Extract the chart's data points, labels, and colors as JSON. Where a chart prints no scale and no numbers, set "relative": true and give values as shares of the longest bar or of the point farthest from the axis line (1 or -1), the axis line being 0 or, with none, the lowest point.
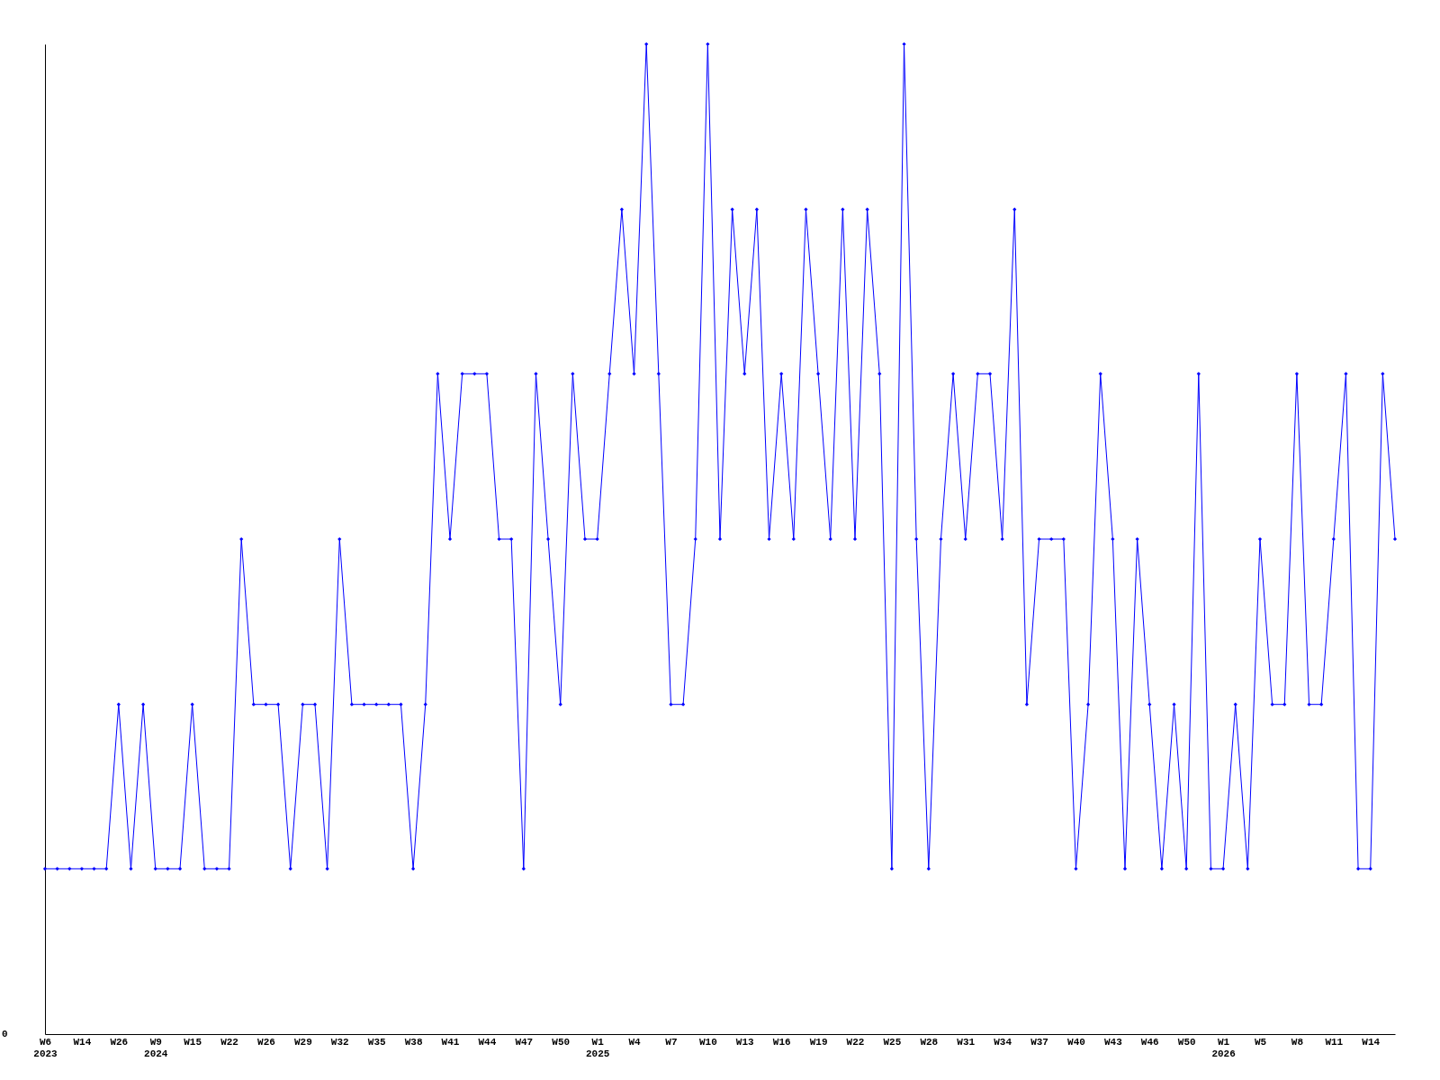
{
  "chart_data": {
    "type": "line",
    "relative": true,
    "color": "#0000ff",
    "marker": "diamond",
    "line_style": "solid",
    "grid": false,
    "annotations": [
      "0"
    ],
    "categories": [
      "W6\n2023",
      null,
      null,
      "W14",
      null,
      null,
      "W26",
      null,
      null,
      "W9\n2024",
      null,
      null,
      "W15",
      null,
      null,
      "W22",
      null,
      null,
      "W26",
      null,
      null,
      "W29",
      null,
      null,
      "W32",
      null,
      null,
      "W35",
      null,
      null,
      "W38",
      null,
      null,
      "W41",
      null,
      null,
      "W44",
      null,
      null,
      "W47",
      null,
      null,
      "W50",
      null,
      null,
      "W1\n2025",
      null,
      null,
      "W4",
      null,
      null,
      "W7",
      null,
      null,
      "W10",
      null,
      null,
      "W13",
      null,
      null,
      "W16",
      null,
      null,
      "W19",
      null,
      null,
      "W22",
      null,
      null,
      "W25",
      null,
      null,
      "W28",
      null,
      null,
      "W31",
      null,
      null,
      "W34",
      null,
      null,
      "W37",
      null,
      null,
      "W40",
      null,
      null,
      "W43",
      null,
      null,
      "W46",
      null,
      null,
      "W50",
      null,
      null,
      "W1\n2026",
      null,
      null,
      "W5",
      null,
      null,
      "W8",
      null,
      null,
      "W11",
      null,
      null,
      "W14",
      null,
      null
    ],
    "values": [
      0.167,
      0.167,
      0.167,
      0.167,
      0.167,
      0.167,
      0.333,
      0.167,
      0.333,
      0.167,
      0.167,
      0.167,
      0.333,
      0.167,
      0.167,
      0.167,
      0.5,
      0.333,
      0.333,
      0.333,
      0.167,
      0.333,
      0.333,
      0.167,
      0.5,
      0.333,
      0.333,
      0.333,
      0.333,
      0.333,
      0.167,
      0.333,
      0.667,
      0.5,
      0.667,
      0.667,
      0.667,
      0.5,
      0.5,
      0.167,
      0.667,
      0.5,
      0.333,
      0.667,
      0.5,
      0.5,
      0.667,
      0.833,
      0.667,
      1,
      0.667,
      0.333,
      0.333,
      0.5,
      1,
      0.5,
      0.833,
      0.667,
      0.833,
      0.5,
      0.667,
      0.5,
      0.833,
      0.667,
      0.5,
      0.833,
      0.5,
      0.833,
      0.667,
      0.167,
      1,
      0.5,
      0.167,
      0.5,
      0.667,
      0.5,
      0.667,
      0.667,
      0.5,
      0.833,
      0.333,
      0.5,
      0.5,
      0.5,
      0.167,
      0.333,
      0.667,
      0.5,
      0.167,
      0.5,
      0.333,
      0.167,
      0.333,
      0.167,
      0.667,
      0.167,
      0.167,
      0.333,
      0.167,
      0.5,
      0.333,
      0.333,
      0.667,
      0.333,
      0.333,
      0.5,
      0.667,
      0.167,
      0.167,
      0.667,
      0.5
    ]
  }
}
